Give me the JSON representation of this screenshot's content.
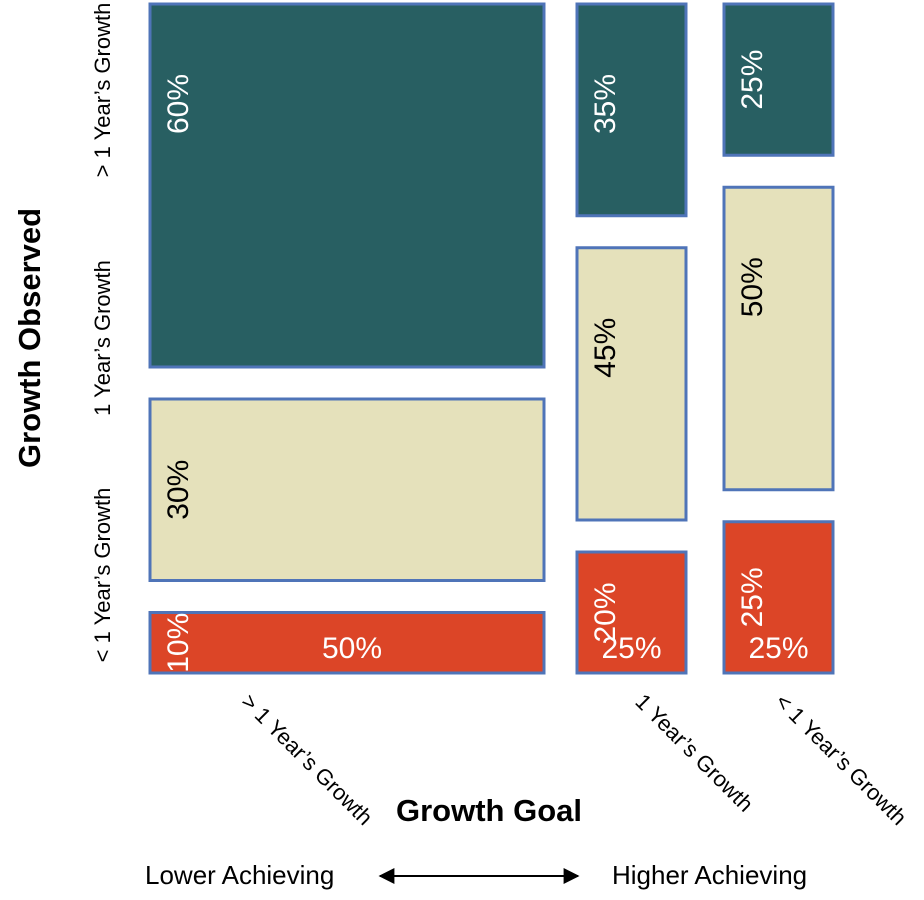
{
  "chart_data": {
    "type": "mosaic",
    "title": "",
    "xlabel": "Growth Goal",
    "ylabel": "Growth Observed",
    "x_categories": [
      "> 1 Year’s Growth",
      "1 Year’s Growth",
      "< 1 Year’s Growth"
    ],
    "y_categories": [
      "> 1 Year’s Growth",
      "1 Year’s Growth",
      "< 1 Year’s Growth"
    ],
    "column_shares": [
      "50%",
      "25%",
      "25%"
    ],
    "column_share_values": [
      50,
      25,
      25
    ],
    "series": [
      {
        "name": "> 1 Year’s Growth",
        "values": [
          60,
          35,
          25
        ],
        "labels": [
          "60%",
          "35%",
          "25%"
        ]
      },
      {
        "name": "1 Year’s Growth",
        "values": [
          30,
          45,
          50
        ],
        "labels": [
          "30%",
          "45%",
          "50%"
        ]
      },
      {
        "name": "< 1 Year’s Growth",
        "values": [
          10,
          20,
          25
        ],
        "labels": [
          "10%",
          "20%",
          "25%"
        ]
      }
    ],
    "colors": {
      "above": "#285F62",
      "at": "#E5E1BB",
      "below": "#DC4527",
      "border": "#4F74B8",
      "label_on_dark": "#ffffff",
      "label_on_light": "#000000"
    },
    "footer": {
      "left": "Lower Achieving",
      "right": "Higher Achieving"
    }
  }
}
